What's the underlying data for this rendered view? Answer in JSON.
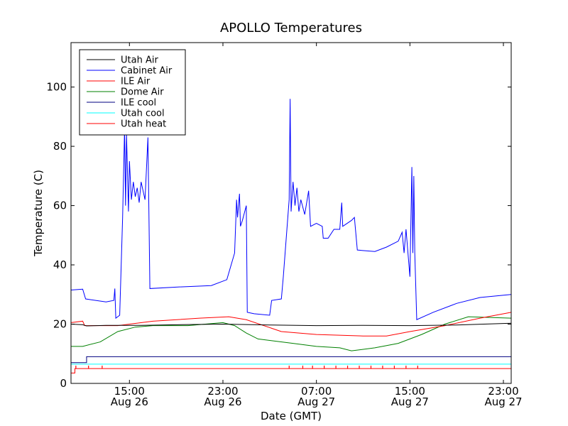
{
  "chart_data": {
    "type": "line",
    "title": "APOLLO Temperatures",
    "xlabel": "Date (GMT)",
    "ylabel": "Temperature (C)",
    "xlim": [
      "2023-08-26 10:00",
      "2023-08-27 23:40"
    ],
    "ylim": [
      0,
      115
    ],
    "grid": false,
    "legend_position": "top-left",
    "x_ticks": [
      {
        "x": "2023-08-26 15:00",
        "time": "15:00",
        "date": "Aug 26"
      },
      {
        "x": "2023-08-26 23:00",
        "time": "23:00",
        "date": "Aug 26"
      },
      {
        "x": "2023-08-27 07:00",
        "time": "07:00",
        "date": "Aug 27"
      },
      {
        "x": "2023-08-27 15:00",
        "time": "15:00",
        "date": "Aug 27"
      },
      {
        "x": "2023-08-27 23:00",
        "time": "23:00",
        "date": "Aug 27"
      }
    ],
    "y_ticks": [
      0,
      20,
      40,
      60,
      80,
      100
    ],
    "series": [
      {
        "name": "Utah Air",
        "color": "#000000",
        "points": [
          [
            "2023-08-26 10:00",
            20
          ],
          [
            "2023-08-26 11:00",
            19.8
          ],
          [
            "2023-08-26 11:20",
            19.4
          ],
          [
            "2023-08-26 13:00",
            19.6
          ],
          [
            "2023-08-26 16:00",
            19.6
          ],
          [
            "2023-08-26 19:00",
            19.8
          ],
          [
            "2023-08-26 23:00",
            20.0
          ],
          [
            "2023-08-27 03:00",
            19.7
          ],
          [
            "2023-08-27 07:00",
            19.5
          ],
          [
            "2023-08-27 11:00",
            19.6
          ],
          [
            "2023-08-27 15:00",
            19.5
          ],
          [
            "2023-08-27 19:00",
            19.7
          ],
          [
            "2023-08-27 23:40",
            20.3
          ]
        ]
      },
      {
        "name": "Cabinet Air",
        "color": "#0000ff",
        "points": [
          [
            "2023-08-26 10:00",
            31.5
          ],
          [
            "2023-08-26 11:00",
            31.8
          ],
          [
            "2023-08-26 11:15",
            28.5
          ],
          [
            "2023-08-26 13:00",
            27.5
          ],
          [
            "2023-08-26 13:40",
            28
          ],
          [
            "2023-08-26 13:45",
            32
          ],
          [
            "2023-08-26 13:50",
            22
          ],
          [
            "2023-08-26 14:10",
            23
          ],
          [
            "2023-08-26 14:25",
            56
          ],
          [
            "2023-08-26 14:35",
            86
          ],
          [
            "2023-08-26 14:40",
            60
          ],
          [
            "2023-08-26 14:45",
            84
          ],
          [
            "2023-08-26 14:55",
            58
          ],
          [
            "2023-08-26 15:00",
            75
          ],
          [
            "2023-08-26 15:10",
            62
          ],
          [
            "2023-08-26 15:20",
            68
          ],
          [
            "2023-08-26 15:30",
            63
          ],
          [
            "2023-08-26 15:40",
            66
          ],
          [
            "2023-08-26 15:50",
            61
          ],
          [
            "2023-08-26 16:00",
            68
          ],
          [
            "2023-08-26 16:20",
            62
          ],
          [
            "2023-08-26 16:35",
            83
          ],
          [
            "2023-08-26 16:45",
            32
          ],
          [
            "2023-08-26 19:00",
            32.5
          ],
          [
            "2023-08-26 22:00",
            33
          ],
          [
            "2023-08-26 23:20",
            35
          ],
          [
            "2023-08-27 00:00",
            44
          ],
          [
            "2023-08-27 00:10",
            62
          ],
          [
            "2023-08-27 00:15",
            56
          ],
          [
            "2023-08-27 00:25",
            64
          ],
          [
            "2023-08-27 00:30",
            53
          ],
          [
            "2023-08-27 00:40",
            55
          ],
          [
            "2023-08-27 01:00",
            60
          ],
          [
            "2023-08-27 01:05",
            24
          ],
          [
            "2023-08-27 01:40",
            23.5
          ],
          [
            "2023-08-27 03:00",
            23
          ],
          [
            "2023-08-27 03:10",
            28
          ],
          [
            "2023-08-27 04:00",
            28.5
          ],
          [
            "2023-08-27 04:10",
            36
          ],
          [
            "2023-08-27 04:40",
            62
          ],
          [
            "2023-08-27 04:45",
            96
          ],
          [
            "2023-08-27 04:50",
            58
          ],
          [
            "2023-08-27 05:00",
            68
          ],
          [
            "2023-08-27 05:10",
            60
          ],
          [
            "2023-08-27 05:20",
            66
          ],
          [
            "2023-08-27 05:30",
            58
          ],
          [
            "2023-08-27 05:40",
            62
          ],
          [
            "2023-08-27 06:00",
            57
          ],
          [
            "2023-08-27 06:20",
            65
          ],
          [
            "2023-08-27 06:30",
            53
          ],
          [
            "2023-08-27 07:00",
            54
          ],
          [
            "2023-08-27 07:30",
            53
          ],
          [
            "2023-08-27 07:35",
            49
          ],
          [
            "2023-08-27 08:00",
            49
          ],
          [
            "2023-08-27 08:30",
            52
          ],
          [
            "2023-08-27 09:00",
            52
          ],
          [
            "2023-08-27 09:10",
            61
          ],
          [
            "2023-08-27 09:15",
            53
          ],
          [
            "2023-08-27 10:00",
            55
          ],
          [
            "2023-08-27 10:15",
            56
          ],
          [
            "2023-08-27 10:30",
            45
          ],
          [
            "2023-08-27 12:00",
            44.5
          ],
          [
            "2023-08-27 13:00",
            46
          ],
          [
            "2023-08-27 14:00",
            48
          ],
          [
            "2023-08-27 14:20",
            51
          ],
          [
            "2023-08-27 14:30",
            44
          ],
          [
            "2023-08-27 14:40",
            52
          ],
          [
            "2023-08-27 14:50",
            44
          ],
          [
            "2023-08-27 15:00",
            36
          ],
          [
            "2023-08-27 15:10",
            73
          ],
          [
            "2023-08-27 15:15",
            44
          ],
          [
            "2023-08-27 15:20",
            70
          ],
          [
            "2023-08-27 15:25",
            44
          ],
          [
            "2023-08-27 15:35",
            21.5
          ],
          [
            "2023-08-27 17:00",
            24
          ],
          [
            "2023-08-27 19:00",
            27
          ],
          [
            "2023-08-27 21:00",
            29
          ],
          [
            "2023-08-27 23:40",
            30
          ]
        ]
      },
      {
        "name": "ILE Air",
        "color": "#ff0000",
        "points": [
          [
            "2023-08-26 10:00",
            20.5
          ],
          [
            "2023-08-26 11:00",
            21
          ],
          [
            "2023-08-26 11:10",
            19.5
          ],
          [
            "2023-08-26 14:00",
            19.5
          ],
          [
            "2023-08-26 17:00",
            21
          ],
          [
            "2023-08-26 21:00",
            22
          ],
          [
            "2023-08-26 23:30",
            22.5
          ],
          [
            "2023-08-27 01:00",
            21.5
          ],
          [
            "2023-08-27 04:00",
            17.5
          ],
          [
            "2023-08-27 07:00",
            16.5
          ],
          [
            "2023-08-27 11:00",
            16
          ],
          [
            "2023-08-27 13:00",
            16
          ],
          [
            "2023-08-27 15:00",
            17.5
          ],
          [
            "2023-08-27 18:00",
            19.5
          ],
          [
            "2023-08-27 21:00",
            22
          ],
          [
            "2023-08-27 23:40",
            24
          ]
        ]
      },
      {
        "name": "Dome Air",
        "color": "#008000",
        "points": [
          [
            "2023-08-26 10:00",
            12.5
          ],
          [
            "2023-08-26 11:00",
            12.5
          ],
          [
            "2023-08-26 12:30",
            14
          ],
          [
            "2023-08-26 14:00",
            17.5
          ],
          [
            "2023-08-26 15:30",
            19
          ],
          [
            "2023-08-26 17:00",
            19.5
          ],
          [
            "2023-08-26 20:00",
            19.5
          ],
          [
            "2023-08-26 23:00",
            20.5
          ],
          [
            "2023-08-27 00:00",
            19.5
          ],
          [
            "2023-08-27 01:00",
            17
          ],
          [
            "2023-08-27 02:00",
            15
          ],
          [
            "2023-08-27 05:00",
            13.5
          ],
          [
            "2023-08-27 07:00",
            12.5
          ],
          [
            "2023-08-27 09:00",
            12
          ],
          [
            "2023-08-27 10:00",
            11
          ],
          [
            "2023-08-27 12:00",
            12
          ],
          [
            "2023-08-27 14:00",
            13.5
          ],
          [
            "2023-08-27 16:00",
            16.5
          ],
          [
            "2023-08-27 18:00",
            20
          ],
          [
            "2023-08-27 20:00",
            22.5
          ],
          [
            "2023-08-27 23:40",
            22
          ]
        ]
      },
      {
        "name": "ILE cool",
        "color": "#000080",
        "points": [
          [
            "2023-08-26 10:00",
            7
          ],
          [
            "2023-08-26 11:20",
            7
          ],
          [
            "2023-08-26 11:20",
            9
          ],
          [
            "2023-08-27 23:40",
            9
          ]
        ]
      },
      {
        "name": "Utah cool",
        "color": "#00ffff",
        "points": [
          [
            "2023-08-26 10:00",
            6.5
          ],
          [
            "2023-08-27 23:40",
            6.5
          ]
        ]
      },
      {
        "name": "Utah heat",
        "color": "#ff0000",
        "points": [
          [
            "2023-08-26 10:00",
            3.5
          ],
          [
            "2023-08-26 10:20",
            3.5
          ],
          [
            "2023-08-26 10:20",
            5
          ],
          [
            "2023-08-27 23:40",
            5
          ]
        ],
        "spikes": [
          "2023-08-26 10:25",
          "2023-08-26 11:30",
          "2023-08-26 12:40",
          "2023-08-27 04:40",
          "2023-08-27 05:50",
          "2023-08-27 06:40",
          "2023-08-27 07:40",
          "2023-08-27 08:40",
          "2023-08-27 09:40",
          "2023-08-27 10:40",
          "2023-08-27 11:40",
          "2023-08-27 12:40",
          "2023-08-27 13:40",
          "2023-08-27 14:40",
          "2023-08-27 15:40"
        ],
        "spike_value": 6
      }
    ]
  }
}
